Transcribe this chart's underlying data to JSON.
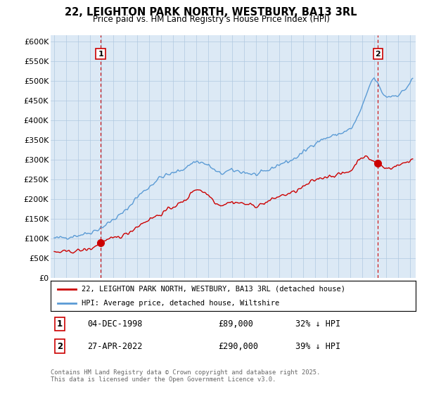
{
  "title_line1": "22, LEIGHTON PARK NORTH, WESTBURY, BA13 3RL",
  "title_line2": "Price paid vs. HM Land Registry's House Price Index (HPI)",
  "ylabel_ticks": [
    "£0",
    "£50K",
    "£100K",
    "£150K",
    "£200K",
    "£250K",
    "£300K",
    "£350K",
    "£400K",
    "£450K",
    "£500K",
    "£550K",
    "£600K"
  ],
  "ytick_values": [
    0,
    50000,
    100000,
    150000,
    200000,
    250000,
    300000,
    350000,
    400000,
    450000,
    500000,
    550000,
    600000
  ],
  "ylim": [
    0,
    615000
  ],
  "xlim_start": 1994.7,
  "xlim_end": 2025.5,
  "hpi_color": "#5b9bd5",
  "price_color": "#cc0000",
  "chart_bg_color": "#dce9f5",
  "marker1_year": 1998.92,
  "marker1_price": 89000,
  "marker2_year": 2022.32,
  "marker2_price": 290000,
  "legend_line1": "22, LEIGHTON PARK NORTH, WESTBURY, BA13 3RL (detached house)",
  "legend_line2": "HPI: Average price, detached house, Wiltshire",
  "annot1_num": "1",
  "annot1_date": "04-DEC-1998",
  "annot1_price": "£89,000",
  "annot1_hpi": "32% ↓ HPI",
  "annot2_num": "2",
  "annot2_date": "27-APR-2022",
  "annot2_price": "£290,000",
  "annot2_hpi": "39% ↓ HPI",
  "footer": "Contains HM Land Registry data © Crown copyright and database right 2025.\nThis data is licensed under the Open Government Licence v3.0.",
  "background_color": "#ffffff",
  "grid_color": "#b0c8e0"
}
